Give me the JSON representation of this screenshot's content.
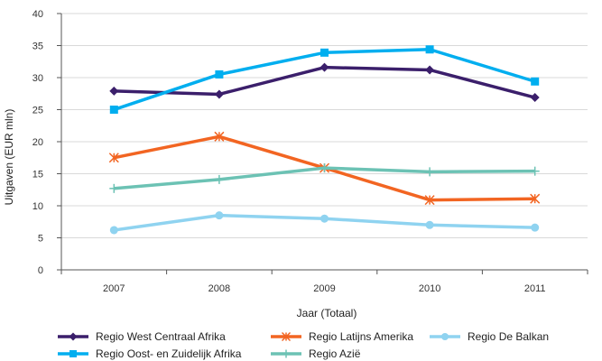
{
  "chart_data": {
    "type": "line",
    "title": "",
    "xlabel": "Jaar (Totaal)",
    "ylabel": "Uitgaven (EUR mln)",
    "categories": [
      "2007",
      "2008",
      "2009",
      "2010",
      "2011"
    ],
    "ylim": [
      0,
      40
    ],
    "yticks": [
      0,
      5,
      10,
      15,
      20,
      25,
      30,
      35,
      40
    ],
    "grid": "horizontal",
    "legend_position": "bottom",
    "series": [
      {
        "name": "Regio West Centraal Afrika",
        "values": [
          27.9,
          27.4,
          31.6,
          31.2,
          26.9
        ],
        "color": "#3b1f6b",
        "marker": "diamond"
      },
      {
        "name": "Regio Oost- en Zuidelijk Afrika",
        "values": [
          25.0,
          30.5,
          33.9,
          34.4,
          29.4
        ],
        "color": "#00aeef",
        "marker": "square"
      },
      {
        "name": "Regio Latijns Amerika",
        "values": [
          17.5,
          20.8,
          15.9,
          10.9,
          11.1
        ],
        "color": "#f26522",
        "marker": "asterisk"
      },
      {
        "name": "Regio Azië",
        "values": [
          12.7,
          14.1,
          15.9,
          15.3,
          15.4
        ],
        "color": "#6cc2b4",
        "marker": "plus"
      },
      {
        "name": "Regio De Balkan",
        "values": [
          6.2,
          8.5,
          8.0,
          7.0,
          6.6
        ],
        "color": "#8fd3f0",
        "marker": "circle"
      }
    ]
  }
}
